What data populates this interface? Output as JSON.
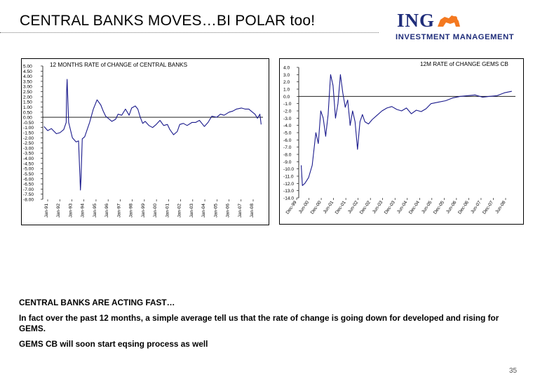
{
  "slide": {
    "title": "CENTRAL BANKS MOVES…BI POLAR too!",
    "logo_main": "ING",
    "logo_sub": "INVESTMENT MANAGEMENT",
    "page_number": "35",
    "notes": [
      "CENTRAL BANKS ARE ACTING FAST…",
      "In fact over the past 12 months, a simple average tell us that the rate of change is going down for developed and rising for GEMS.",
      "GEMS CB will soon start eqsing process as well"
    ]
  },
  "colors": {
    "line": "#1a1a8c",
    "brand": "#1f2d7a",
    "logo_orange": "#f47920"
  },
  "chart_data": [
    {
      "type": "line",
      "title": "12 MONTHS RATE of CHANGE of CENTRAL BANKS",
      "xlabel": "",
      "ylabel": "",
      "ylim": [
        -8.0,
        5.0
      ],
      "yticks": [
        "5.00",
        "4.50",
        "4.00",
        "3.50",
        "3.00",
        "2.50",
        "2.00",
        "1.50",
        "1.00",
        "0.50",
        "0.00",
        "-0.50",
        "-1.00",
        "-1.50",
        "-2.00",
        "-2.50",
        "-3.00",
        "-3.50",
        "-4.00",
        "-4.50",
        "-5.00",
        "-5.50",
        "-6.00",
        "-6.50",
        "-7.00",
        "-7.50",
        "-8.00"
      ],
      "xticks": [
        "Jan-91",
        "Jan-92",
        "Jan-93",
        "Jan-94",
        "Jan-95",
        "Jan-96",
        "Jan-97",
        "Jan-98",
        "Jan-99",
        "Jan-00",
        "Jan-01",
        "Jan-02",
        "Jan-03",
        "Jan-04",
        "Jan-05",
        "Jan-06",
        "Jan-07",
        "Jan-08"
      ],
      "xlim": [
        1990.9,
        2008.75
      ],
      "series": [
        {
          "x": [
            1991.0,
            1991.3,
            1991.6,
            1992.0,
            1992.3,
            1992.6,
            1992.8,
            1992.83,
            1992.87,
            1992.95,
            1993.0,
            1993.3,
            1993.6,
            1993.8,
            1993.9,
            1993.95,
            1994.0,
            1994.1,
            1994.3,
            1994.7,
            1995.0,
            1995.3,
            1995.6,
            1995.8,
            1996.0,
            1996.2,
            1996.5,
            1996.8,
            1997.0,
            1997.3,
            1997.6,
            1997.9,
            1998.1,
            1998.4,
            1998.6,
            1998.8,
            1999.0,
            1999.2,
            1999.5,
            1999.8,
            2000.1,
            2000.4,
            2000.7,
            2001.0,
            2001.2,
            2001.5,
            2001.8,
            2002.0,
            2002.3,
            2002.6,
            2003.0,
            2003.3,
            2003.6,
            2004.0,
            2004.3,
            2004.6,
            2005.0,
            2005.3,
            2005.6,
            2006.0,
            2006.3,
            2006.6,
            2007.0,
            2007.3,
            2007.6,
            2007.9,
            2008.1,
            2008.3,
            2008.5,
            2008.6
          ],
          "y": [
            -0.9,
            -1.3,
            -1.1,
            -1.6,
            -1.5,
            -1.2,
            -0.5,
            2.5,
            3.7,
            1.0,
            -0.5,
            -2.0,
            -2.4,
            -2.3,
            -5.5,
            -7.1,
            -6.0,
            -2.1,
            -1.9,
            -0.5,
            0.8,
            1.7,
            1.2,
            0.6,
            0.1,
            -0.1,
            -0.4,
            -0.2,
            0.3,
            0.2,
            0.8,
            0.2,
            0.9,
            1.1,
            0.8,
            0.0,
            -0.6,
            -0.4,
            -0.8,
            -1.0,
            -0.7,
            -0.3,
            -0.8,
            -0.7,
            -1.2,
            -1.7,
            -1.4,
            -0.7,
            -0.6,
            -0.8,
            -0.5,
            -0.5,
            -0.3,
            -0.9,
            -0.5,
            0.1,
            0.0,
            0.3,
            0.2,
            0.5,
            0.6,
            0.8,
            0.9,
            0.8,
            0.8,
            0.5,
            0.3,
            -0.1,
            0.3,
            -0.7
          ]
        }
      ]
    },
    {
      "type": "line",
      "title": "12M RATE of CHANGE GEMS CB",
      "xlabel": "",
      "ylabel": "",
      "ylim": [
        -14.0,
        4.0
      ],
      "yticks": [
        "4.0",
        "3.0",
        "2.0",
        "1.0",
        "0.0",
        "-1.0",
        "-2.0",
        "-3.0",
        "-4.0",
        "-5.0",
        "-6.0",
        "-7.0",
        "-8.0",
        "-9.0",
        "-10.0",
        "-11.0",
        "-12.0",
        "-13.0",
        "-14.0"
      ],
      "xticks": [
        "Dec-99",
        "Jun-00",
        "Dec-00",
        "Jun-01",
        "Dec-01",
        "Jun-02",
        "Dec-02",
        "Jun-03",
        "Dec-03",
        "Jun-04",
        "Dec-04",
        "Jun-05",
        "Dec-05",
        "Jun-06",
        "Dec-06",
        "Jun-07",
        "Dec-07",
        "Jun-08"
      ],
      "xlim": [
        1999.9,
        2008.75
      ],
      "series": [
        {
          "x": [
            2000.0,
            2000.05,
            2000.15,
            2000.3,
            2000.45,
            2000.6,
            2000.7,
            2000.8,
            2000.9,
            2001.0,
            2001.1,
            2001.2,
            2001.3,
            2001.4,
            2001.5,
            2001.6,
            2001.7,
            2001.8,
            2001.9,
            2002.0,
            2002.1,
            2002.2,
            2002.3,
            2002.4,
            2002.5,
            2002.6,
            2002.75,
            2002.9,
            2003.1,
            2003.3,
            2003.5,
            2003.7,
            2003.9,
            2004.1,
            2004.3,
            2004.5,
            2004.7,
            2004.9,
            2005.1,
            2005.3,
            2005.6,
            2005.9,
            2006.2,
            2006.5,
            2006.8,
            2007.1,
            2007.4,
            2007.7,
            2008.0,
            2008.3,
            2008.6
          ],
          "y": [
            -9.5,
            -12.3,
            -12.0,
            -11.2,
            -9.5,
            -5.0,
            -6.5,
            -2.0,
            -3.0,
            -5.5,
            -2.5,
            3.0,
            1.5,
            -3.0,
            -1.0,
            3.0,
            0.5,
            -1.5,
            -0.5,
            -4.0,
            -2.0,
            -3.5,
            -7.3,
            -3.5,
            -2.5,
            -3.5,
            -3.8,
            -3.2,
            -2.6,
            -2.0,
            -1.6,
            -1.4,
            -1.8,
            -2.0,
            -1.6,
            -2.4,
            -1.9,
            -2.1,
            -1.7,
            -1.0,
            -0.8,
            -0.6,
            -0.2,
            0.0,
            0.1,
            0.2,
            -0.1,
            0.0,
            0.1,
            0.5,
            0.7
          ]
        }
      ]
    }
  ]
}
